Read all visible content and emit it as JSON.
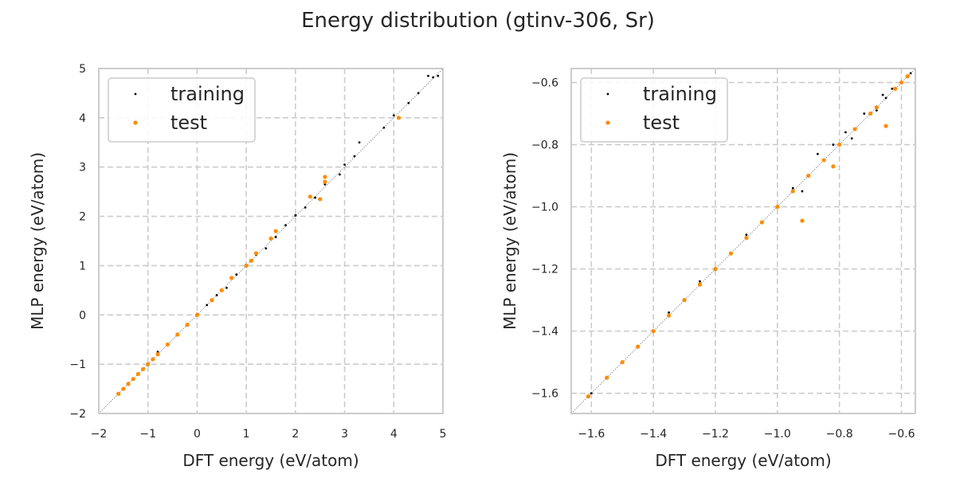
{
  "figure": {
    "title": "Energy distribution (gtinv-306, Sr)"
  },
  "chart_data": [
    {
      "type": "scatter",
      "title": "",
      "xlabel": "DFT energy (eV/atom)",
      "ylabel": "MLP energy (eV/atom)",
      "xlim": [
        -2,
        5
      ],
      "ylim": [
        -2,
        5
      ],
      "xticks": [
        "−2",
        "−1",
        "0",
        "1",
        "2",
        "3",
        "4",
        "5"
      ],
      "yticks": [
        "−2",
        "−1",
        "0",
        "1",
        "2",
        "3",
        "4",
        "5"
      ],
      "grid": true,
      "legend": "upper-left",
      "diagonal_reference": true,
      "series": [
        {
          "name": "training",
          "color": "#000000",
          "marker": "small-dot",
          "points": [
            [
              -1.6,
              -1.6
            ],
            [
              -1.4,
              -1.38
            ],
            [
              -1.2,
              -1.2
            ],
            [
              -1.0,
              -1.02
            ],
            [
              -0.8,
              -0.75
            ],
            [
              -0.6,
              -0.62
            ],
            [
              -0.4,
              -0.38
            ],
            [
              -0.2,
              -0.2
            ],
            [
              0.0,
              0.02
            ],
            [
              0.2,
              0.2
            ],
            [
              0.4,
              0.4
            ],
            [
              0.6,
              0.55
            ],
            [
              0.8,
              0.82
            ],
            [
              1.0,
              0.98
            ],
            [
              1.2,
              1.22
            ],
            [
              1.4,
              1.35
            ],
            [
              1.6,
              1.58
            ],
            [
              1.8,
              1.82
            ],
            [
              2.0,
              2.02
            ],
            [
              2.2,
              2.18
            ],
            [
              2.4,
              2.38
            ],
            [
              2.6,
              2.65
            ],
            [
              2.9,
              2.85
            ],
            [
              3.0,
              3.05
            ],
            [
              3.2,
              3.22
            ],
            [
              3.3,
              3.5
            ],
            [
              3.8,
              3.8
            ],
            [
              4.0,
              4.05
            ],
            [
              4.3,
              4.3
            ],
            [
              4.5,
              4.5
            ],
            [
              4.7,
              4.85
            ],
            [
              4.8,
              4.82
            ],
            [
              4.9,
              4.85
            ]
          ]
        },
        {
          "name": "test",
          "color": "#ff8c00",
          "marker": "dot",
          "points": [
            [
              -1.6,
              -1.6
            ],
            [
              -1.5,
              -1.5
            ],
            [
              -1.4,
              -1.4
            ],
            [
              -1.3,
              -1.3
            ],
            [
              -1.2,
              -1.2
            ],
            [
              -1.1,
              -1.1
            ],
            [
              -1.0,
              -1.0
            ],
            [
              -0.9,
              -0.9
            ],
            [
              -0.8,
              -0.8
            ],
            [
              -0.6,
              -0.6
            ],
            [
              -0.4,
              -0.4
            ],
            [
              -0.2,
              -0.2
            ],
            [
              0.0,
              0.0
            ],
            [
              0.3,
              0.3
            ],
            [
              0.5,
              0.5
            ],
            [
              0.7,
              0.75
            ],
            [
              1.0,
              1.0
            ],
            [
              1.1,
              1.1
            ],
            [
              1.2,
              1.25
            ],
            [
              1.5,
              1.55
            ],
            [
              1.6,
              1.7
            ],
            [
              2.3,
              2.4
            ],
            [
              2.5,
              2.35
            ],
            [
              2.6,
              2.8
            ],
            [
              2.6,
              2.7
            ],
            [
              4.1,
              4.0
            ]
          ]
        }
      ]
    },
    {
      "type": "scatter",
      "title": "",
      "xlabel": "DFT energy (eV/atom)",
      "ylabel": "MLP energy (eV/atom)",
      "xlim": [
        -1.665,
        -0.555
      ],
      "ylim": [
        -1.665,
        -0.555
      ],
      "xticks": [
        "−1.6",
        "−1.4",
        "−1.2",
        "−1.0",
        "−0.8",
        "−0.6"
      ],
      "yticks": [
        "−1.6",
        "−1.4",
        "−1.2",
        "−1.0",
        "−0.8",
        "−0.6"
      ],
      "grid": true,
      "legend": "upper-left",
      "diagonal_reference": true,
      "series": [
        {
          "name": "training",
          "color": "#000000",
          "marker": "small-dot",
          "points": [
            [
              -1.6,
              -1.6
            ],
            [
              -1.55,
              -1.55
            ],
            [
              -1.5,
              -1.5
            ],
            [
              -1.45,
              -1.45
            ],
            [
              -1.4,
              -1.4
            ],
            [
              -1.35,
              -1.34
            ],
            [
              -1.3,
              -1.3
            ],
            [
              -1.25,
              -1.24
            ],
            [
              -1.2,
              -1.2
            ],
            [
              -1.15,
              -1.15
            ],
            [
              -1.1,
              -1.09
            ],
            [
              -1.05,
              -1.05
            ],
            [
              -1.0,
              -1.0
            ],
            [
              -0.95,
              -0.94
            ],
            [
              -0.92,
              -0.95
            ],
            [
              -0.9,
              -0.9
            ],
            [
              -0.87,
              -0.83
            ],
            [
              -0.85,
              -0.85
            ],
            [
              -0.82,
              -0.8
            ],
            [
              -0.8,
              -0.8
            ],
            [
              -0.78,
              -0.76
            ],
            [
              -0.76,
              -0.78
            ],
            [
              -0.75,
              -0.75
            ],
            [
              -0.72,
              -0.7
            ],
            [
              -0.7,
              -0.7
            ],
            [
              -0.68,
              -0.69
            ],
            [
              -0.66,
              -0.64
            ],
            [
              -0.65,
              -0.65
            ],
            [
              -0.63,
              -0.62
            ],
            [
              -0.62,
              -0.62
            ],
            [
              -0.6,
              -0.6
            ],
            [
              -0.58,
              -0.58
            ],
            [
              -0.57,
              -0.57
            ]
          ]
        },
        {
          "name": "test",
          "color": "#ff8c00",
          "marker": "dot",
          "points": [
            [
              -1.61,
              -1.61
            ],
            [
              -1.55,
              -1.55
            ],
            [
              -1.5,
              -1.5
            ],
            [
              -1.45,
              -1.45
            ],
            [
              -1.4,
              -1.4
            ],
            [
              -1.35,
              -1.35
            ],
            [
              -1.3,
              -1.3
            ],
            [
              -1.25,
              -1.25
            ],
            [
              -1.2,
              -1.2
            ],
            [
              -1.15,
              -1.15
            ],
            [
              -1.1,
              -1.1
            ],
            [
              -1.05,
              -1.05
            ],
            [
              -1.0,
              -1.0
            ],
            [
              -0.95,
              -0.95
            ],
            [
              -0.92,
              -1.045
            ],
            [
              -0.9,
              -0.9
            ],
            [
              -0.85,
              -0.85
            ],
            [
              -0.82,
              -0.87
            ],
            [
              -0.8,
              -0.8
            ],
            [
              -0.75,
              -0.75
            ],
            [
              -0.7,
              -0.7
            ],
            [
              -0.68,
              -0.68
            ],
            [
              -0.65,
              -0.74
            ],
            [
              -0.62,
              -0.62
            ],
            [
              -0.6,
              -0.6
            ],
            [
              -0.58,
              -0.58
            ]
          ]
        }
      ]
    }
  ]
}
